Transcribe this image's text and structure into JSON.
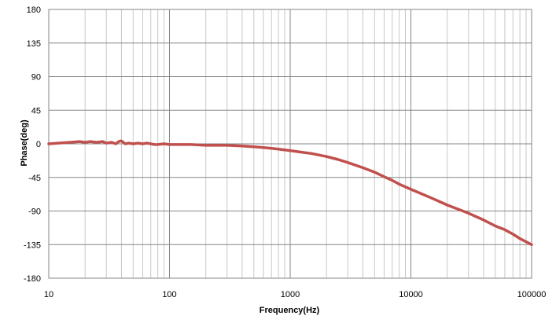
{
  "chart_data": {
    "type": "line",
    "title": "",
    "xlabel": "Frequency(Hz)",
    "ylabel": "Phase(deg)",
    "x_scale": "log",
    "xlim": [
      10,
      100000
    ],
    "ylim": [
      -180,
      180
    ],
    "x_tick_labels": [
      "10",
      "100",
      "1000",
      "10000",
      "100000"
    ],
    "y_tick_labels": [
      "180",
      "135",
      "90",
      "45",
      "0",
      "-45",
      "-90",
      "-135",
      "-180"
    ],
    "y_ticks": [
      180,
      135,
      90,
      45,
      0,
      -45,
      -90,
      -135,
      -180
    ],
    "grid": true,
    "legend": "none",
    "colors": {
      "series": "#c0504d",
      "grid": "#c8c8c8",
      "axis": "#868686"
    },
    "series": [
      {
        "x": [
          10,
          12,
          15,
          18,
          20,
          22,
          25,
          28,
          30,
          33,
          36,
          38,
          40,
          43,
          46,
          50,
          55,
          60,
          65,
          70,
          75,
          80,
          90,
          100,
          120,
          150,
          200,
          300,
          400,
          500,
          600,
          700,
          800,
          1000,
          1200,
          1500,
          2000,
          2500,
          3000,
          4000,
          5000,
          6000,
          7000,
          8000,
          10000,
          15000,
          20000,
          30000,
          40000,
          50000,
          60000,
          70000,
          80000,
          100000
        ],
        "y": [
          0,
          1,
          2,
          3,
          2,
          3,
          2,
          3,
          1,
          2,
          0,
          3,
          4,
          0,
          1,
          0,
          1,
          0,
          1,
          0,
          -1,
          -1,
          0,
          -1,
          -1,
          -1,
          -2,
          -2,
          -3,
          -4,
          -5,
          -6,
          -7,
          -9,
          -11,
          -13,
          -17,
          -21,
          -25,
          -32,
          -38,
          -44,
          -49,
          -54,
          -61,
          -73,
          -82,
          -93,
          -102,
          -110,
          -115,
          -121,
          -127,
          -135
        ]
      }
    ]
  }
}
